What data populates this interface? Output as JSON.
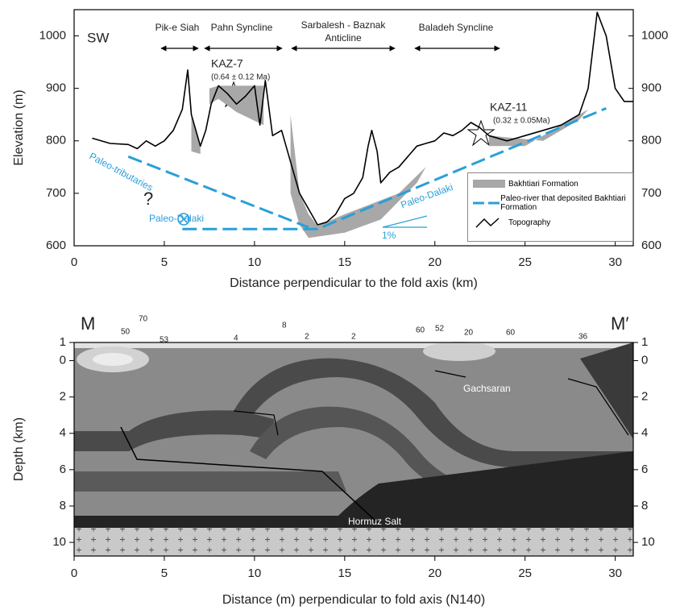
{
  "chart_data": [
    {
      "type": "line",
      "x_label": "Distance perpendicular to the fold axis (km)",
      "y_label": "Elevation (m)",
      "xlim": [
        0,
        31
      ],
      "ylim": [
        600,
        1050
      ],
      "xticks": [
        0,
        5,
        10,
        15,
        20,
        25,
        30
      ],
      "yticks": [
        600,
        700,
        800,
        900,
        1000
      ],
      "y2lim": [
        600,
        1050
      ],
      "y2ticks": [
        600,
        700,
        800,
        900,
        1000
      ],
      "invert_y": false,
      "series": [
        {
          "name": "Bakhtiari Formation",
          "color": "#a8a8a8",
          "kind": "fill",
          "x": [
            6.5,
            7,
            7,
            6.5,
            null,
            7.5,
            8,
            10.5,
            10.5,
            9,
            8,
            7.5,
            null,
            12,
            12.5,
            13,
            13.5,
            15,
            18,
            19.5,
            19,
            17,
            15,
            13,
            12.5,
            12,
            null,
            23,
            26,
            28,
            28.5,
            27,
            25,
            23
          ],
          "values": [
            850,
            790,
            775,
            780,
            null,
            900,
            905,
            905,
            830,
            855,
            880,
            870,
            null,
            850,
            700,
            660,
            638,
            660,
            700,
            750,
            720,
            650,
            625,
            615,
            640,
            700,
            null,
            810,
            800,
            840,
            860,
            830,
            790,
            790
          ]
        },
        {
          "name": "Paleo-river that deposited Bakhtiari Formation",
          "color": "#2a9fd8",
          "kind": "dashed",
          "x": [
            3,
            13,
            null,
            6,
            13.5,
            29.5
          ],
          "values": [
            770,
            635,
            null,
            632,
            632,
            862
          ]
        },
        {
          "name": "Topography",
          "color": "#000000",
          "kind": "line",
          "x": [
            1,
            2,
            3,
            3.5,
            4,
            4.5,
            5,
            5.5,
            6,
            6.3,
            6.5,
            7,
            7.3,
            7.6,
            8,
            8.5,
            9,
            9.5,
            10,
            10.3,
            10.6,
            11,
            11.5,
            12,
            12.5,
            13,
            13.5,
            14,
            14.5,
            15,
            15.5,
            16,
            16.3,
            16.5,
            16.8,
            17,
            17.5,
            18,
            18.5,
            19,
            19.5,
            20,
            20.5,
            21,
            21.5,
            22,
            22.5,
            23,
            24,
            25,
            26,
            27,
            28,
            28.5,
            29,
            29.5,
            30,
            30.5,
            31
          ],
          "values": [
            805,
            795,
            793,
            785,
            800,
            790,
            800,
            820,
            860,
            935,
            850,
            790,
            820,
            870,
            905,
            890,
            870,
            885,
            905,
            830,
            915,
            810,
            820,
            760,
            700,
            670,
            640,
            645,
            660,
            690,
            700,
            730,
            790,
            820,
            780,
            720,
            740,
            750,
            770,
            790,
            795,
            800,
            815,
            810,
            820,
            835,
            825,
            810,
            800,
            810,
            820,
            830,
            850,
            900,
            1045,
            1000,
            900,
            875,
            875
          ]
        }
      ],
      "annotations": [
        "SW",
        "Pik-e Siah",
        "Pahn Syncline",
        "Sarbalesh - Baznak",
        "Anticline",
        "Baladeh Syncline",
        "KAZ-7",
        "(0.64 ± 0.12 Ma)",
        "KAZ-11",
        "(0.32 ± 0.05Ma)",
        "Paleo-tributaries",
        "?",
        "Paleo-Dalaki",
        "Paleo-Dalaki",
        "1%"
      ]
    },
    {
      "type": "section",
      "x_label": "Distance (m) perpendicular to fold axis (N140)",
      "y_label": "Depth (km)",
      "xlim": [
        0,
        31
      ],
      "ylim": [
        -1,
        10.75
      ],
      "xticks": [
        0,
        5,
        10,
        15,
        20,
        25,
        30
      ],
      "yticks": [
        {
          "value": -1,
          "label": "1"
        },
        0,
        2,
        4,
        6,
        8,
        10
      ],
      "y2lim": [
        -1,
        10.75
      ],
      "y2ticks": [
        {
          "value": -1,
          "label": "1"
        },
        0,
        2,
        4,
        6,
        8,
        10
      ],
      "invert_y": true,
      "annotations": [
        "M",
        "M′",
        "Gachsaran",
        "Hormuz Salt",
        "50",
        "70",
        "53",
        "4",
        "8",
        "2",
        "2",
        "60",
        "52",
        "20",
        "60",
        "36"
      ]
    }
  ]
}
